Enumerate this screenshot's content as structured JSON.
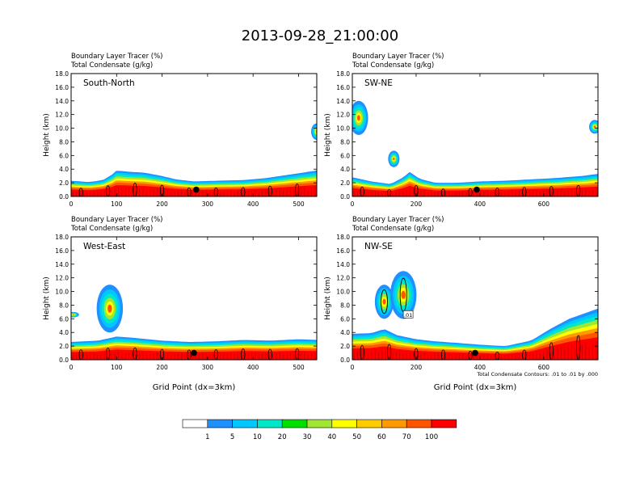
{
  "title": "2013-09-28_21:00:00",
  "chart_data": [
    {
      "type": "heatmap",
      "panel_label": "South-North",
      "subtitle_lines": [
        "Boundary Layer Tracer   (%)",
        "Total Condensate   (g/kg)"
      ],
      "ylabel": "Height (km)",
      "xlabel": "",
      "xlim": [
        0,
        540
      ],
      "ylim": [
        0,
        18
      ],
      "xticks": [
        "0",
        "100",
        "200",
        "300",
        "400",
        "500"
      ],
      "xtick_values": [
        0,
        100,
        200,
        300,
        400,
        500
      ],
      "yticks": [
        "0.0",
        "2.0",
        "4.0",
        "6.0",
        "8.0",
        "10.0",
        "12.0",
        "14.0",
        "16.0",
        "18.0"
      ],
      "bl_top_km": [
        [
          0,
          2.3
        ],
        [
          40,
          2.1
        ],
        [
          70,
          2.4
        ],
        [
          90,
          3.2
        ],
        [
          100,
          3.8
        ],
        [
          130,
          3.6
        ],
        [
          160,
          3.5
        ],
        [
          200,
          3.0
        ],
        [
          230,
          2.5
        ],
        [
          270,
          2.2
        ],
        [
          320,
          2.3
        ],
        [
          380,
          2.4
        ],
        [
          430,
          2.7
        ],
        [
          480,
          3.2
        ],
        [
          520,
          3.6
        ],
        [
          540,
          3.8
        ]
      ],
      "marker": {
        "x": 275,
        "y": 1.0
      },
      "upper_clouds": [
        [
          540,
          9.5,
          1.2
        ]
      ]
    },
    {
      "type": "heatmap",
      "panel_label": "SW-NE",
      "subtitle_lines": [
        "Boundary Layer Tracer   (%)",
        "Total Condensate   (g/kg)"
      ],
      "ylabel": "Height (km)",
      "xlabel": "",
      "xlim": [
        0,
        770
      ],
      "ylim": [
        0,
        18
      ],
      "xticks": [
        "0",
        "200",
        "400",
        "600"
      ],
      "xtick_values": [
        0,
        200,
        400,
        600
      ],
      "yticks": [
        "0.0",
        "2.0",
        "4.0",
        "6.0",
        "8.0",
        "10.0",
        "12.0",
        "14.0",
        "16.0",
        "18.0"
      ],
      "bl_top_km": [
        [
          0,
          2.8
        ],
        [
          60,
          2.2
        ],
        [
          120,
          1.8
        ],
        [
          160,
          2.8
        ],
        [
          180,
          3.6
        ],
        [
          210,
          2.6
        ],
        [
          260,
          2.0
        ],
        [
          330,
          2.0
        ],
        [
          400,
          2.2
        ],
        [
          480,
          2.3
        ],
        [
          560,
          2.5
        ],
        [
          640,
          2.7
        ],
        [
          720,
          3.0
        ],
        [
          770,
          3.3
        ]
      ],
      "marker": {
        "x": 390,
        "y": 1.0
      },
      "upper_clouds": [
        [
          20,
          11.5,
          2.5
        ],
        [
          130,
          5.5,
          1.2
        ],
        [
          760,
          10.2,
          1.0
        ]
      ]
    },
    {
      "type": "heatmap",
      "panel_label": "West-East",
      "subtitle_lines": [
        "Boundary Layer Tracer   (%)",
        "Total Condensate   (g/kg)"
      ],
      "ylabel": "Height (km)",
      "xlabel": "Grid Point (dx=3km)",
      "xlim": [
        0,
        540
      ],
      "ylim": [
        0,
        18
      ],
      "xticks": [
        "0",
        "100",
        "200",
        "300",
        "400",
        "500"
      ],
      "xtick_values": [
        0,
        100,
        200,
        300,
        400,
        500
      ],
      "yticks": [
        "0.0",
        "2.0",
        "4.0",
        "6.0",
        "8.0",
        "10.0",
        "12.0",
        "14.0",
        "16.0",
        "18.0"
      ],
      "bl_top_km": [
        [
          0,
          2.6
        ],
        [
          60,
          2.8
        ],
        [
          100,
          3.4
        ],
        [
          140,
          3.2
        ],
        [
          200,
          2.8
        ],
        [
          260,
          2.6
        ],
        [
          320,
          2.7
        ],
        [
          380,
          2.9
        ],
        [
          440,
          2.8
        ],
        [
          500,
          3.0
        ],
        [
          540,
          2.9
        ]
      ],
      "marker": {
        "x": 270,
        "y": 1.0
      },
      "upper_clouds": [
        [
          85,
          7.5,
          3.5
        ],
        [
          5,
          6.6,
          0.4
        ]
      ]
    },
    {
      "type": "heatmap",
      "panel_label": "NW-SE",
      "subtitle_lines": [
        "Boundary Layer Tracer   (%)",
        "Total Condensate   (g/kg)"
      ],
      "ylabel": "Height (km)",
      "xlabel": "Grid Point (dx=3km)",
      "xlim": [
        0,
        770
      ],
      "ylim": [
        0,
        18
      ],
      "xticks": [
        "0",
        "200",
        "400",
        "600"
      ],
      "xtick_values": [
        0,
        200,
        400,
        600
      ],
      "yticks": [
        "0.0",
        "2.0",
        "4.0",
        "6.0",
        "8.0",
        "10.0",
        "12.0",
        "14.0",
        "16.0",
        "18.0"
      ],
      "bl_top_km": [
        [
          0,
          3.8
        ],
        [
          60,
          3.9
        ],
        [
          100,
          4.5
        ],
        [
          140,
          3.6
        ],
        [
          200,
          3.0
        ],
        [
          260,
          2.7
        ],
        [
          320,
          2.5
        ],
        [
          400,
          2.2
        ],
        [
          480,
          2.0
        ],
        [
          560,
          2.8
        ],
        [
          620,
          4.5
        ],
        [
          680,
          6.0
        ],
        [
          740,
          7.0
        ],
        [
          770,
          7.5
        ]
      ],
      "marker": {
        "x": 385,
        "y": 1.0
      },
      "upper_clouds": [
        [
          100,
          8.5,
          2.5
        ],
        [
          160,
          9.5,
          3.5
        ]
      ],
      "contour_label": ".01",
      "footnote": "Total Condensate Contours: .01 to .01 by .000"
    }
  ],
  "colorbar": {
    "labels": [
      "1",
      "5",
      "10",
      "20",
      "30",
      "40",
      "50",
      "60",
      "70",
      "100"
    ],
    "colors": [
      "#ffffff",
      "#1e90ff",
      "#00c8ff",
      "#00e8c8",
      "#00e000",
      "#a0e632",
      "#ffff00",
      "#ffcc00",
      "#ff9900",
      "#ff5500",
      "#ff0000"
    ]
  }
}
